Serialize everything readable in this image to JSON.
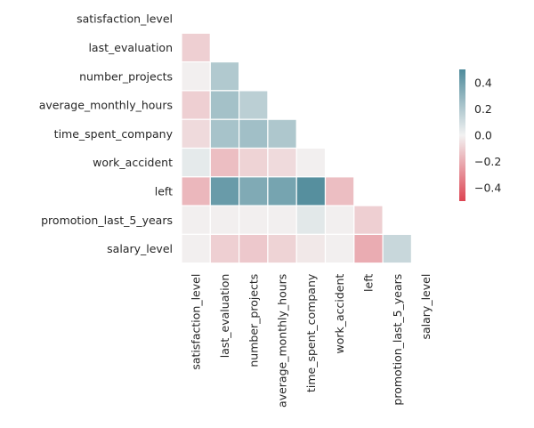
{
  "chart_data": {
    "type": "heatmap",
    "title": "",
    "variables": [
      "satisfaction_level",
      "last_evaluation",
      "number_projects",
      "average_monthly_hours",
      "time_spent_company",
      "work_accident",
      "left",
      "promotion_last_5_years",
      "salary_level"
    ],
    "mask": "upper-triangle-including-diagonal",
    "matrix": [
      [
        null,
        null,
        null,
        null,
        null,
        null,
        null,
        null,
        null
      ],
      [
        -0.1,
        null,
        null,
        null,
        null,
        null,
        null,
        null,
        null
      ],
      [
        -0.01,
        0.2,
        null,
        null,
        null,
        null,
        null,
        null,
        null
      ],
      [
        -0.1,
        0.24,
        0.17,
        null,
        null,
        null,
        null,
        null,
        null
      ],
      [
        -0.07,
        0.23,
        0.25,
        0.21,
        null,
        null,
        null,
        null,
        null
      ],
      [
        0.04,
        -0.15,
        -0.09,
        -0.07,
        -0.01,
        null,
        null,
        null,
        null
      ],
      [
        -0.17,
        0.42,
        0.35,
        0.38,
        0.48,
        -0.15,
        null,
        null,
        null
      ],
      [
        -0.01,
        -0.01,
        -0.01,
        -0.01,
        0.05,
        -0.01,
        -0.1,
        null,
        null
      ],
      [
        -0.01,
        -0.1,
        -0.12,
        -0.09,
        -0.03,
        -0.01,
        -0.2,
        0.13,
        null
      ]
    ],
    "colorbar": {
      "vmin": -0.5,
      "vmax": 0.5,
      "ticks": [
        0.4,
        0.2,
        0.0,
        -0.2,
        -0.4
      ],
      "tick_labels": [
        "0.4",
        "0.2",
        "0.0",
        "−0.2",
        "−0.4"
      ],
      "colors": {
        "negative": "#dd4452",
        "center": "#f2f2f2",
        "positive": "#4f8b9b"
      }
    }
  }
}
